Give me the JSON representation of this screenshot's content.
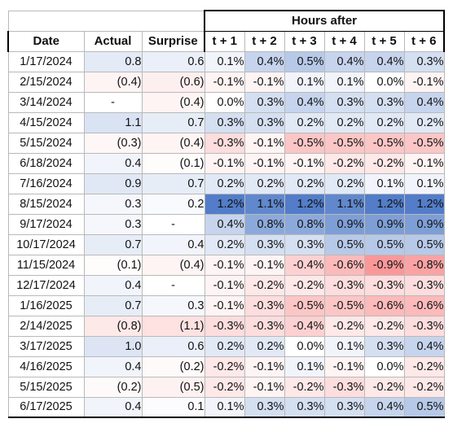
{
  "header": {
    "hours_after": "Hours after",
    "date": "Date",
    "actual": "Actual",
    "surprise": "Surprise",
    "hours": [
      "t + 1",
      "t + 2",
      "t + 3",
      "t + 4",
      "t + 5",
      "t + 6"
    ]
  },
  "colors": {
    "positive": "#4472c4",
    "negative": "#f8696b",
    "neutral": "#ffffff"
  },
  "rows": [
    {
      "date": "1/17/2024",
      "actual": "0.8",
      "actual_v": 0.8,
      "surprise": "0.6",
      "surprise_v": 0.6,
      "hours": [
        "0.1%",
        "0.4%",
        "0.5%",
        "0.4%",
        "0.4%",
        "0.3%"
      ]
    },
    {
      "date": "2/15/2024",
      "actual": "(0.4)",
      "actual_v": -0.4,
      "surprise": "(0.6)",
      "surprise_v": -0.6,
      "hours": [
        "-0.1%",
        "-0.1%",
        "0.1%",
        "0.1%",
        "0.0%",
        "-0.1%"
      ]
    },
    {
      "date": "3/14/2024",
      "actual": "-",
      "actual_v": 0,
      "surprise": "(0.4)",
      "surprise_v": -0.4,
      "hours": [
        "0.0%",
        "0.3%",
        "0.4%",
        "0.3%",
        "0.3%",
        "0.4%"
      ]
    },
    {
      "date": "4/15/2024",
      "actual": "1.1",
      "actual_v": 1.1,
      "surprise": "0.7",
      "surprise_v": 0.7,
      "hours": [
        "0.3%",
        "0.3%",
        "0.2%",
        "0.2%",
        "0.2%",
        "0.2%"
      ]
    },
    {
      "date": "5/15/2024",
      "actual": "(0.3)",
      "actual_v": -0.3,
      "surprise": "(0.4)",
      "surprise_v": -0.4,
      "hours": [
        "-0.3%",
        "-0.1%",
        "-0.5%",
        "-0.5%",
        "-0.5%",
        "-0.5%"
      ]
    },
    {
      "date": "6/18/2024",
      "actual": "0.4",
      "actual_v": 0.4,
      "surprise": "(0.1)",
      "surprise_v": -0.1,
      "hours": [
        "-0.1%",
        "-0.1%",
        "-0.1%",
        "-0.2%",
        "-0.2%",
        "-0.1%"
      ]
    },
    {
      "date": "7/16/2024",
      "actual": "0.9",
      "actual_v": 0.9,
      "surprise": "0.7",
      "surprise_v": 0.7,
      "hours": [
        "0.2%",
        "0.2%",
        "0.2%",
        "0.2%",
        "0.1%",
        "0.1%"
      ]
    },
    {
      "date": "8/15/2024",
      "actual": "0.3",
      "actual_v": 0.3,
      "surprise": "0.2",
      "surprise_v": 0.2,
      "hours": [
        "1.2%",
        "1.1%",
        "1.2%",
        "1.1%",
        "1.2%",
        "1.2%"
      ]
    },
    {
      "date": "9/17/2024",
      "actual": "0.3",
      "actual_v": 0.3,
      "surprise": "-",
      "surprise_v": 0,
      "hours": [
        "0.4%",
        "0.8%",
        "0.8%",
        "0.9%",
        "0.9%",
        "0.9%"
      ]
    },
    {
      "date": "10/17/2024",
      "actual": "0.7",
      "actual_v": 0.7,
      "surprise": "0.4",
      "surprise_v": 0.4,
      "hours": [
        "0.2%",
        "0.3%",
        "0.3%",
        "0.5%",
        "0.5%",
        "0.5%"
      ]
    },
    {
      "date": "11/15/2024",
      "actual": "(0.1)",
      "actual_v": -0.1,
      "surprise": "(0.4)",
      "surprise_v": -0.4,
      "hours": [
        "-0.1%",
        "-0.1%",
        "-0.4%",
        "-0.6%",
        "-0.9%",
        "-0.8%"
      ]
    },
    {
      "date": "12/17/2024",
      "actual": "0.4",
      "actual_v": 0.4,
      "surprise": "-",
      "surprise_v": 0,
      "hours": [
        "-0.1%",
        "-0.2%",
        "-0.2%",
        "-0.3%",
        "-0.3%",
        "-0.3%"
      ]
    },
    {
      "date": "1/16/2025",
      "actual": "0.7",
      "actual_v": 0.7,
      "surprise": "0.3",
      "surprise_v": 0.3,
      "hours": [
        "-0.1%",
        "-0.3%",
        "-0.5%",
        "-0.5%",
        "-0.6%",
        "-0.6%"
      ]
    },
    {
      "date": "2/14/2025",
      "actual": "(0.8)",
      "actual_v": -0.8,
      "surprise": "(1.1)",
      "surprise_v": -1.1,
      "hours": [
        "-0.3%",
        "-0.3%",
        "-0.4%",
        "-0.2%",
        "-0.2%",
        "-0.3%"
      ]
    },
    {
      "date": "3/17/2025",
      "actual": "1.0",
      "actual_v": 1.0,
      "surprise": "0.6",
      "surprise_v": 0.6,
      "hours": [
        "0.2%",
        "0.2%",
        "0.0%",
        "0.1%",
        "0.3%",
        "0.4%"
      ]
    },
    {
      "date": "4/16/2025",
      "actual": "0.4",
      "actual_v": 0.4,
      "surprise": "(0.2)",
      "surprise_v": -0.2,
      "hours": [
        "-0.2%",
        "-0.1%",
        "0.1%",
        "-0.1%",
        "0.0%",
        "-0.2%"
      ]
    },
    {
      "date": "5/15/2025",
      "actual": "(0.2)",
      "actual_v": -0.2,
      "surprise": "(0.5)",
      "surprise_v": -0.5,
      "hours": [
        "-0.2%",
        "-0.1%",
        "-0.2%",
        "-0.3%",
        "-0.2%",
        "-0.2%"
      ]
    },
    {
      "date": "6/17/2025",
      "actual": "0.4",
      "actual_v": 0.4,
      "surprise": "0.1",
      "surprise_v": 0.1,
      "hours": [
        "0.1%",
        "0.3%",
        "0.3%",
        "0.3%",
        "0.4%",
        "0.5%"
      ]
    }
  ]
}
